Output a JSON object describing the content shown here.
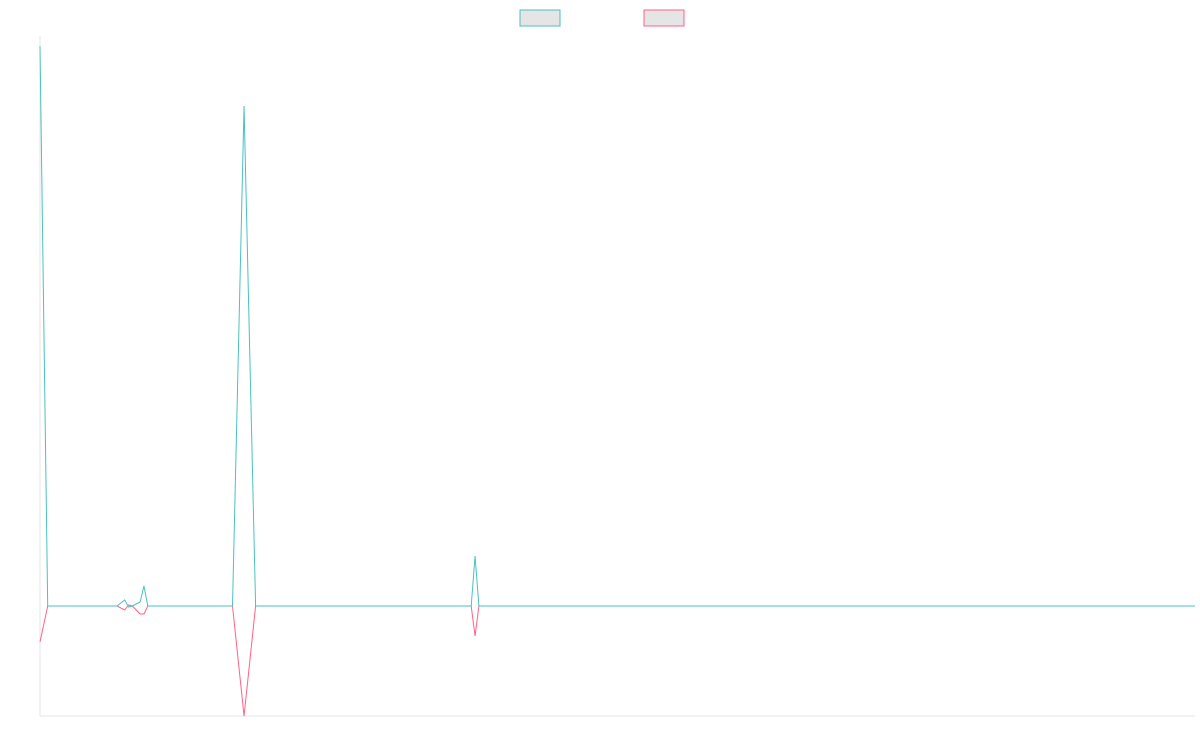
{
  "chart_data": {
    "type": "line",
    "series": [
      {
        "color": "#4bc0c0",
        "points": [
          [
            0,
            2.8
          ],
          [
            2,
            0
          ],
          [
            20,
            0
          ],
          [
            22,
            0.03
          ],
          [
            23,
            -0.005
          ],
          [
            24,
            0
          ],
          [
            26,
            0.02
          ],
          [
            27,
            0.1
          ],
          [
            28,
            0
          ],
          [
            50,
            0
          ],
          [
            53,
            2.5
          ],
          [
            56,
            0
          ],
          [
            112,
            0
          ],
          [
            113,
            0.25
          ],
          [
            114,
            0
          ],
          [
            300,
            0
          ]
        ],
        "legend_fill": "#e5e5e5"
      },
      {
        "color": "#ff6384",
        "points": [
          [
            0,
            -0.18
          ],
          [
            2,
            0
          ],
          [
            20,
            0
          ],
          [
            22,
            -0.02
          ],
          [
            23,
            0.005
          ],
          [
            24,
            0
          ],
          [
            26,
            -0.04
          ],
          [
            27,
            -0.04
          ],
          [
            28,
            0
          ],
          [
            50,
            0
          ],
          [
            53,
            -0.55
          ],
          [
            56,
            0
          ],
          [
            112,
            0
          ],
          [
            113,
            -0.15
          ],
          [
            114,
            0
          ],
          [
            300,
            0
          ]
        ],
        "legend_fill": "#e5e5e5"
      }
    ],
    "xlim": [
      0,
      300
    ],
    "ylim": [
      -0.55,
      2.85
    ],
    "grid": false,
    "legend": "top-center",
    "axis_color": "#e6e6e6"
  }
}
